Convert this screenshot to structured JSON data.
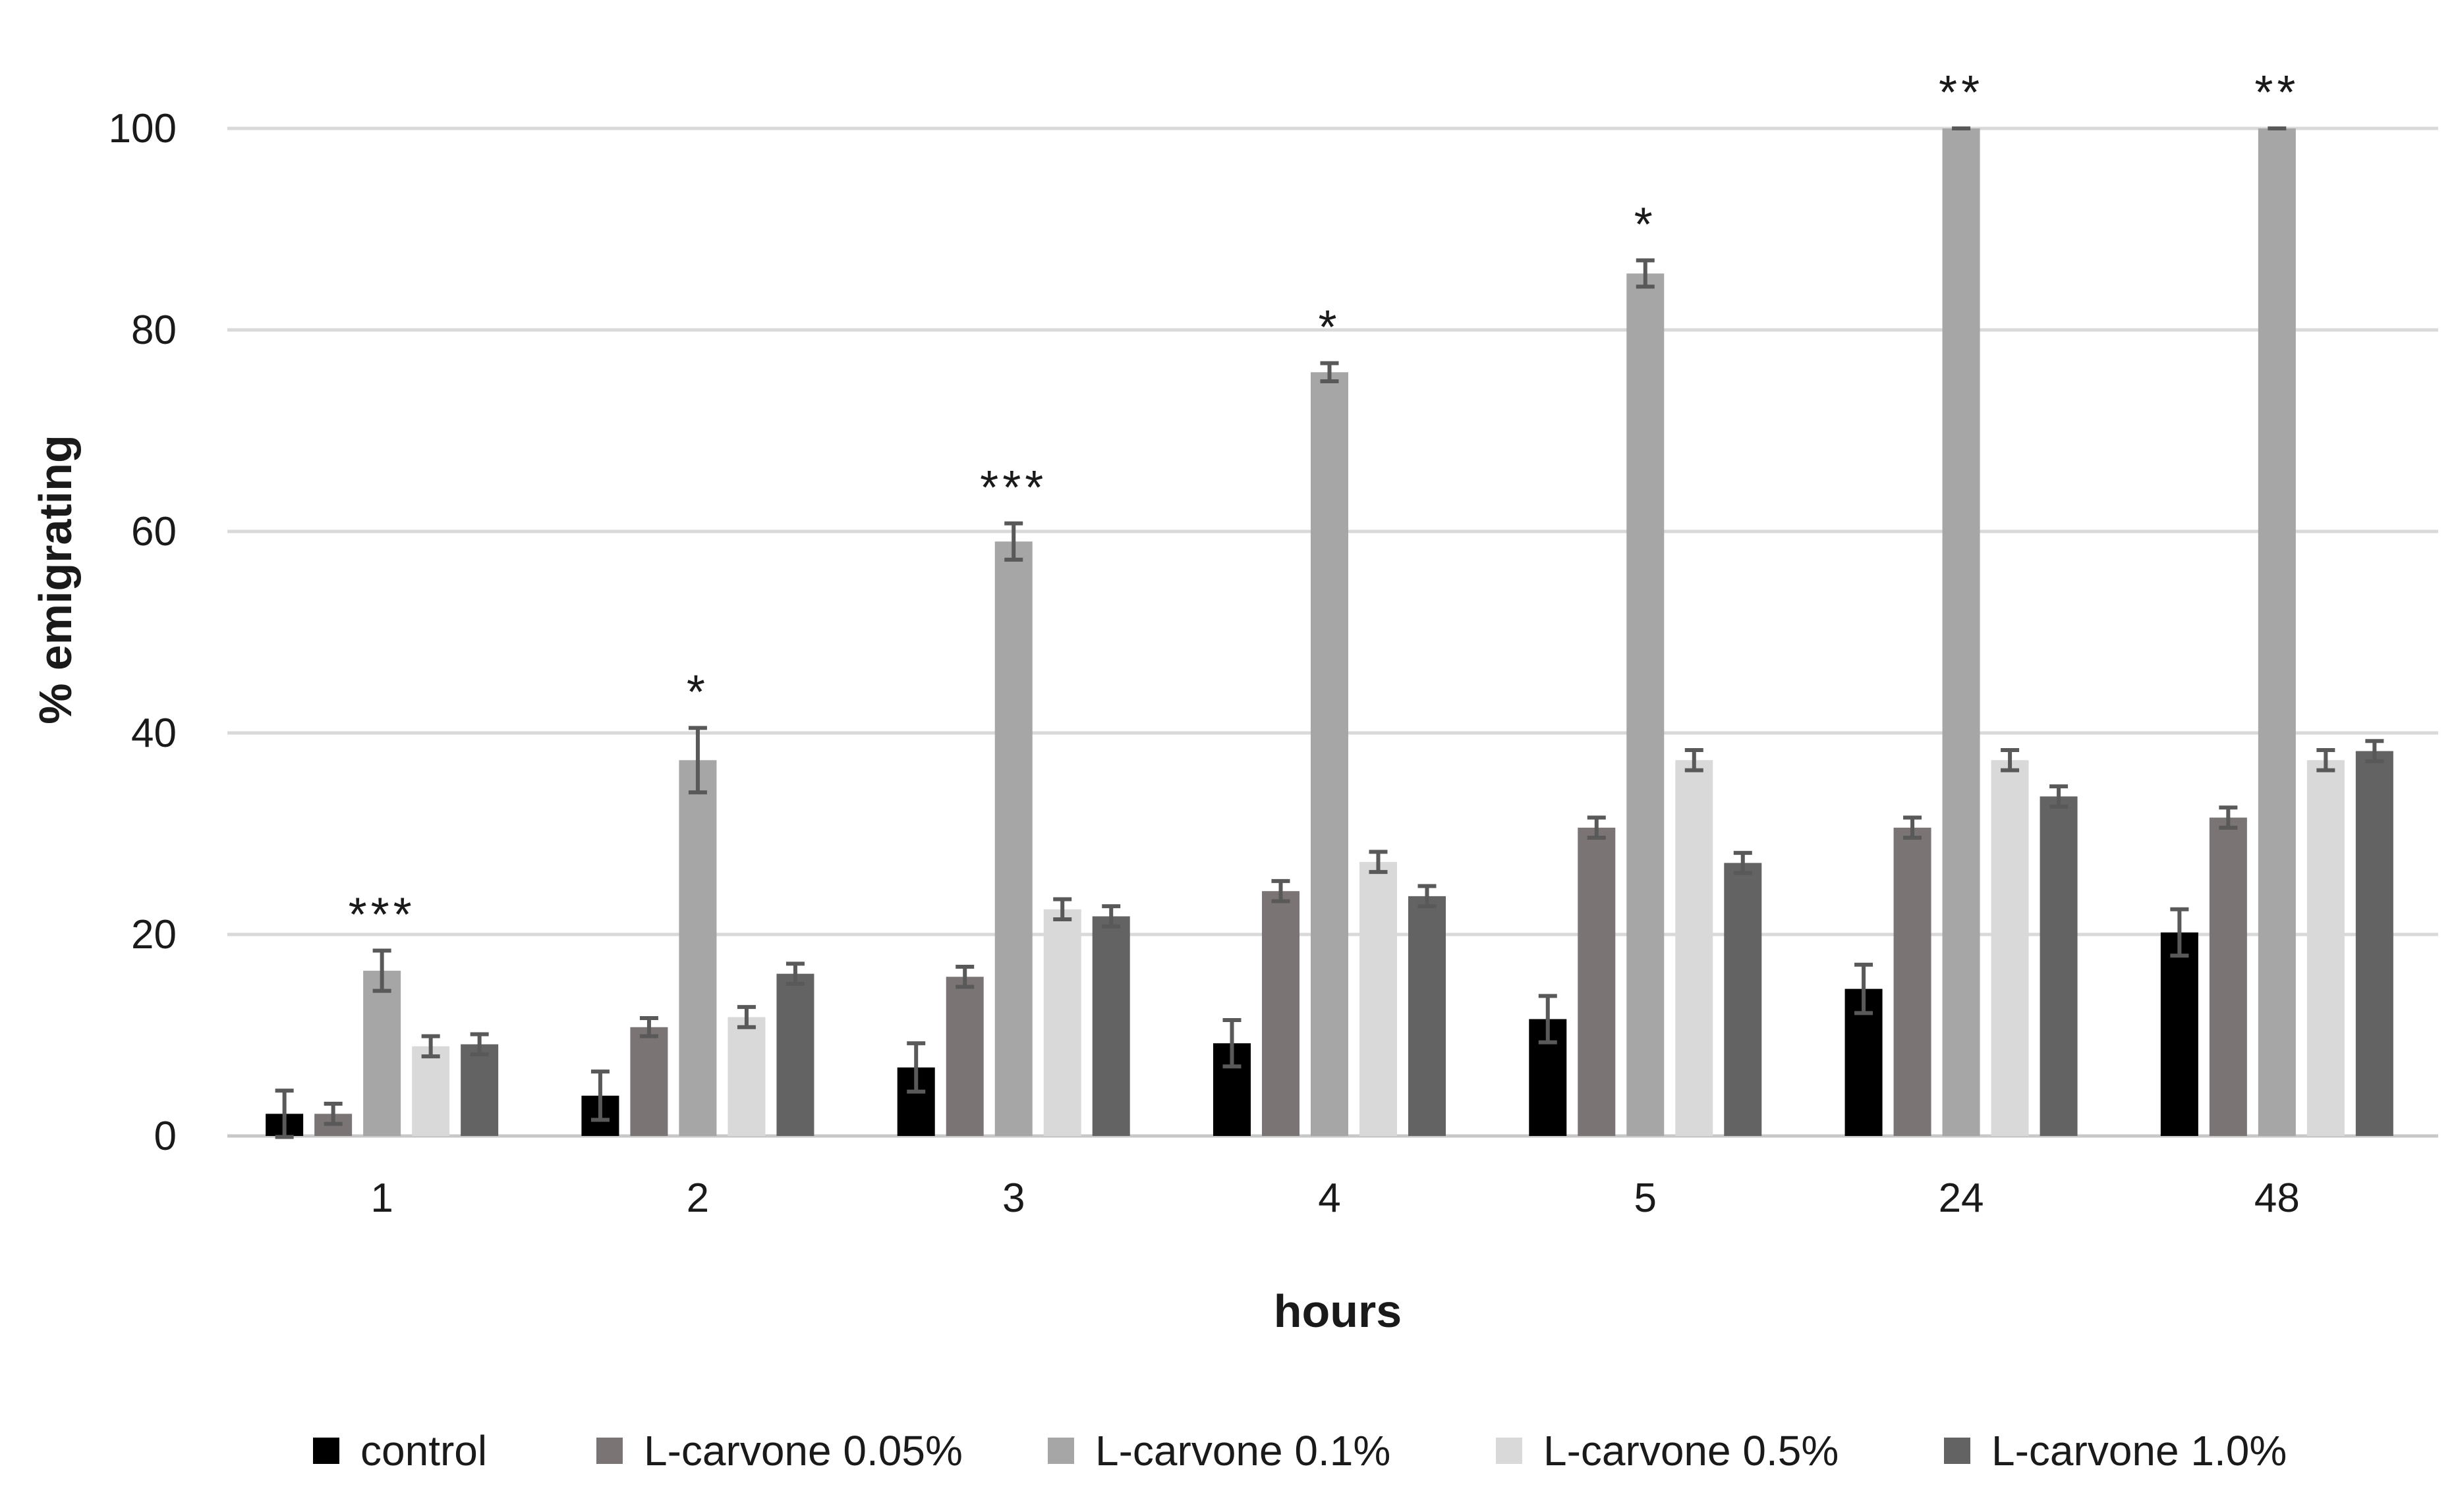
{
  "chart_data": {
    "type": "bar",
    "title": "",
    "xlabel": "hours",
    "ylabel": "% emigrating",
    "ylim": [
      0,
      100
    ],
    "yticks": [
      0,
      20,
      40,
      60,
      80,
      100
    ],
    "grid": true,
    "legend_position": "bottom",
    "categories": [
      "1",
      "2",
      "3",
      "4",
      "5",
      "24",
      "48"
    ],
    "series": [
      {
        "name": "control",
        "color": "#000000",
        "values": [
          2.2,
          4.0,
          6.8,
          9.2,
          11.6,
          14.6,
          20.2
        ],
        "errors": [
          2.3,
          2.4,
          2.4,
          2.3,
          2.3,
          2.4,
          2.3
        ]
      },
      {
        "name": "L-carvone 0.05%",
        "color": "#7a7574",
        "values": [
          2.2,
          10.8,
          15.8,
          24.3,
          30.6,
          30.6,
          31.6
        ],
        "errors": [
          1.0,
          0.9,
          1.0,
          1.0,
          1.0,
          1.0,
          1.0
        ]
      },
      {
        "name": "L-carvone 0.1%",
        "color": "#a6a6a6",
        "values": [
          16.4,
          37.3,
          59.0,
          75.8,
          85.6,
          100.0,
          100.0
        ],
        "errors": [
          2.0,
          3.2,
          1.8,
          0.9,
          1.3,
          0,
          0
        ]
      },
      {
        "name": "L-carvone 0.5%",
        "color": "#d9d9d9",
        "values": [
          8.9,
          11.8,
          22.5,
          27.2,
          37.3,
          37.3,
          37.3
        ],
        "errors": [
          1.0,
          1.0,
          1.0,
          1.0,
          1.0,
          1.0,
          1.0
        ]
      },
      {
        "name": "L-carvone 1.0%",
        "color": "#636363",
        "values": [
          9.1,
          16.1,
          21.8,
          23.8,
          27.1,
          33.7,
          38.2
        ],
        "errors": [
          1.0,
          1.0,
          1.0,
          1.0,
          1.0,
          1.0,
          1.0
        ]
      }
    ],
    "annotations": [
      {
        "category": "1",
        "label": "***"
      },
      {
        "category": "2",
        "label": "*"
      },
      {
        "category": "3",
        "label": "***"
      },
      {
        "category": "4",
        "label": "*"
      },
      {
        "category": "5",
        "label": "*"
      },
      {
        "category": "24",
        "label": "**"
      },
      {
        "category": "48",
        "label": "**"
      }
    ]
  }
}
